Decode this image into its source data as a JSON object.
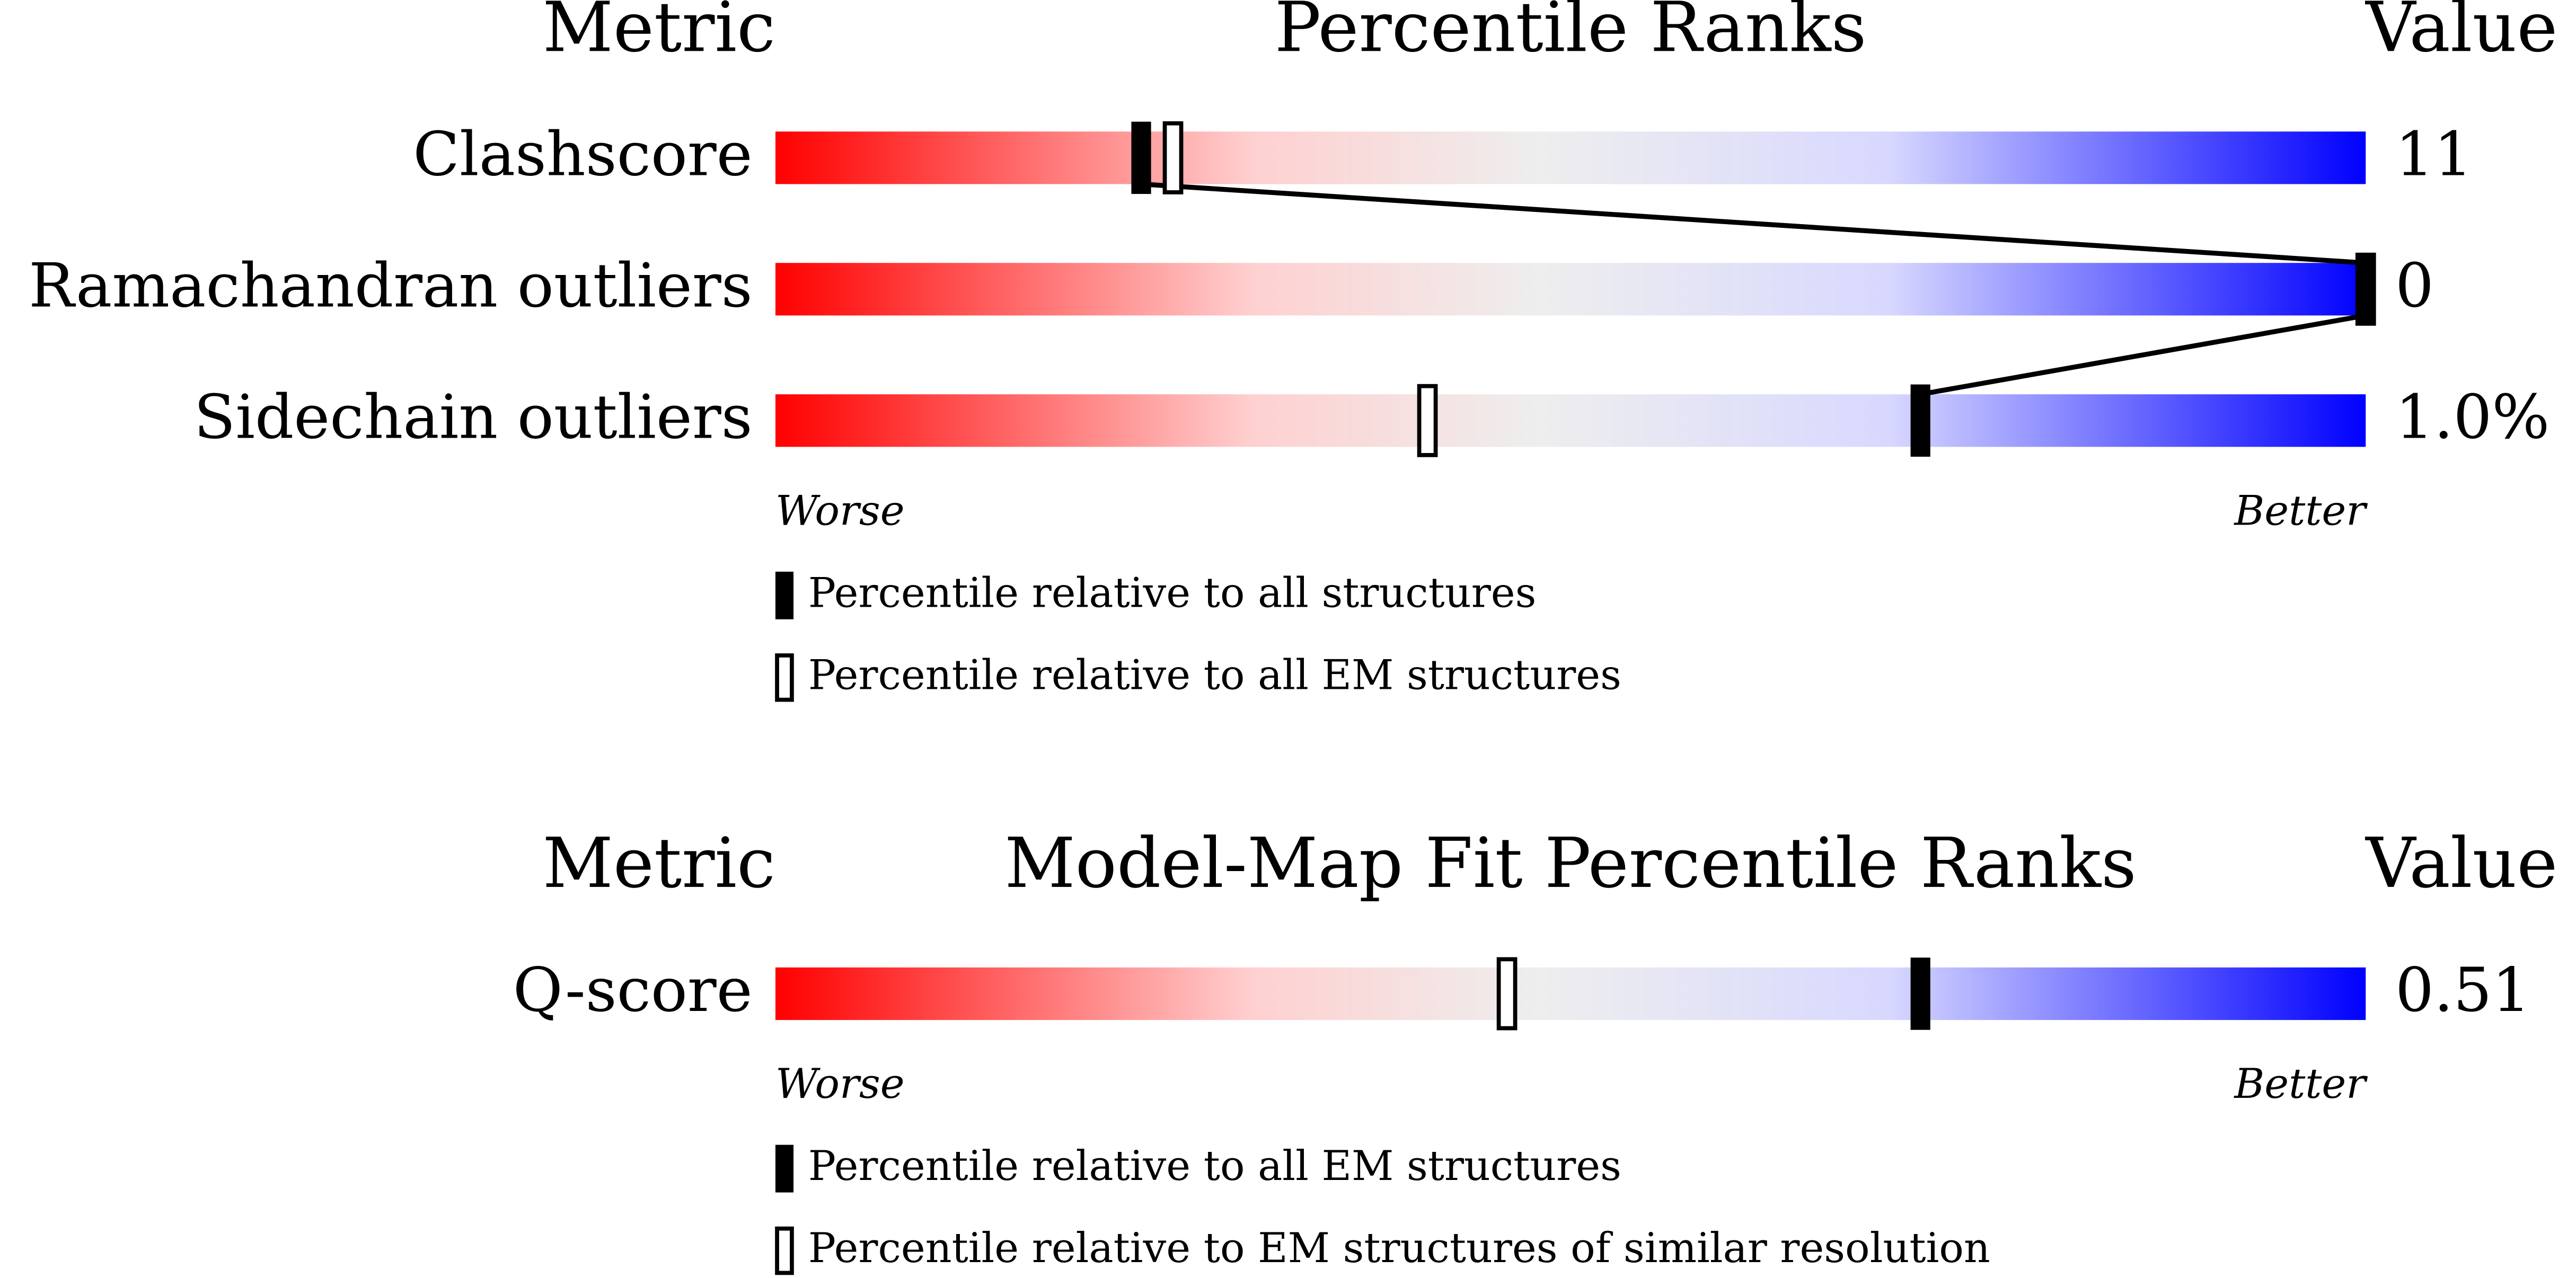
{
  "chart_data": [
    {
      "type": "percentile-slider",
      "header": {
        "metric": "Metric",
        "title": "Percentile Ranks",
        "value": "Value"
      },
      "metrics": [
        "Clashscore",
        "Ramachandran outliers",
        "Sidechain outliers"
      ],
      "metric_values": [
        "11",
        "0",
        "1.0%"
      ],
      "series": [
        {
          "name": "Percentile relative to all structures",
          "style": "filled",
          "values": [
            23,
            100,
            72
          ]
        },
        {
          "name": "Percentile relative to all EM structures",
          "style": "open",
          "values": [
            25,
            100,
            41
          ]
        }
      ],
      "xlim": [
        0,
        100
      ],
      "axis_labels": [
        "Worse",
        "Better"
      ]
    },
    {
      "type": "percentile-slider",
      "header": {
        "metric": "Metric",
        "title": "Model-Map Fit Percentile Ranks",
        "value": "Value"
      },
      "metrics": [
        "Q-score"
      ],
      "metric_values": [
        "0.51"
      ],
      "series": [
        {
          "name": "Percentile relative to all EM structures",
          "style": "filled",
          "values": [
            72
          ]
        },
        {
          "name": "Percentile relative to EM structures of similar resolution",
          "style": "open",
          "values": [
            46
          ]
        }
      ],
      "xlim": [
        0,
        100
      ],
      "axis_labels": [
        "Worse",
        "Better"
      ]
    }
  ]
}
